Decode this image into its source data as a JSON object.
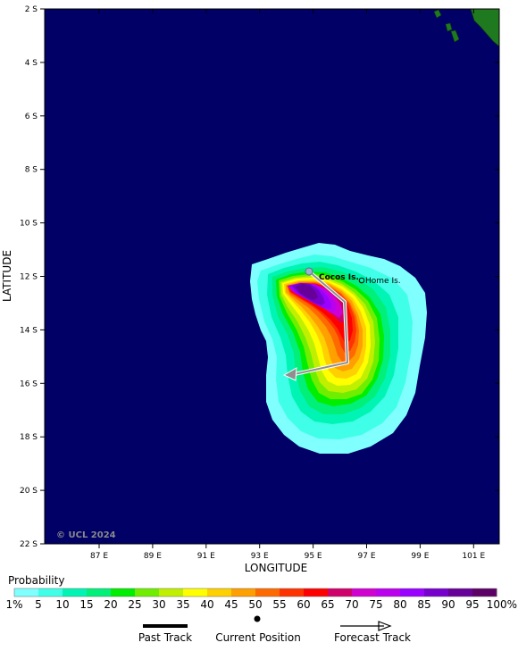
{
  "map": {
    "axes": {
      "lat_ticks": [
        "2 S",
        "4 S",
        "6 S",
        "8 S",
        "10 S",
        "12 S",
        "14 S",
        "16 S",
        "18 S",
        "20 S",
        "22 S"
      ],
      "lon_ticks": [
        "87 E",
        "89 E",
        "91 E",
        "93 E",
        "95 E",
        "97 E",
        "99 E",
        "101 E"
      ],
      "x_title": "LONGITUDE",
      "y_title": "LATITUDE"
    },
    "credit": "© UCL 2024",
    "places": [
      {
        "name": "Cocos Is."
      },
      {
        "name": "Home Is."
      }
    ],
    "colors": {
      "ocean": "#000066",
      "land": "#1f7a1f",
      "track": "#9a9a9a"
    }
  },
  "legend": {
    "title": "Probability",
    "labels": [
      "1%",
      "5",
      "10",
      "15",
      "20",
      "25",
      "30",
      "35",
      "40",
      "45",
      "50",
      "55",
      "60",
      "65",
      "70",
      "75",
      "80",
      "85",
      "90",
      "95",
      "100%"
    ],
    "colors": [
      "#80ffff",
      "#40ffe8",
      "#00f5b4",
      "#00f07a",
      "#00ee00",
      "#70ee00",
      "#c0f000",
      "#ffff00",
      "#ffd000",
      "#ff9f00",
      "#ff6a00",
      "#ff3300",
      "#ff0000",
      "#d0006a",
      "#d000d0",
      "#bb00ee",
      "#9900ff",
      "#7700cc",
      "#660099",
      "#5c0066"
    ],
    "keys": {
      "past": "Past Track",
      "current": "Current Position",
      "forecast": "Forecast Track"
    }
  }
}
